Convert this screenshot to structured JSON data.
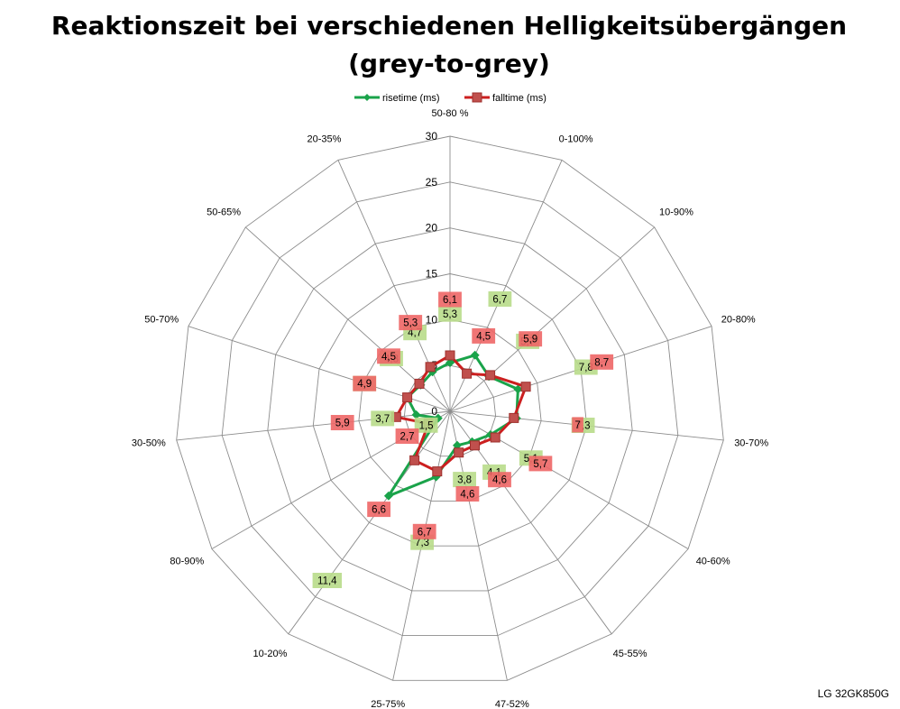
{
  "chart_data": {
    "type": "radar",
    "title": "Reaktionszeit bei verschiedenen Helligkeitsübergängen",
    "subtitle": "(grey-to-grey)",
    "categories": [
      "50-80 %",
      "0-100%",
      "10-90%",
      "20-80%",
      "30-70%",
      "40-60%",
      "45-55%",
      "47-52%",
      "25-75%",
      "10-20%",
      "80-90%",
      "30-50%",
      "50-70%",
      "50-65%",
      "20-35%"
    ],
    "rlim": [
      0,
      30
    ],
    "ticks": [
      0,
      5,
      10,
      15,
      20,
      25,
      30
    ],
    "series": [
      {
        "name": "risetime (ms)",
        "color": "#1aa34a",
        "label_bg": "#b8dc8a",
        "values": [
          5.3,
          6.7,
          5.7,
          7.8,
          7.3,
          5.1,
          4.1,
          3.8,
          7.3,
          11.4,
          1.5,
          3.7,
          4.9,
          4.3,
          4.7
        ]
      },
      {
        "name": "falltime (ms)",
        "color": "#cc1f1f",
        "label_bg": "#ee6666",
        "values": [
          6.1,
          4.5,
          5.9,
          8.7,
          7.0,
          5.7,
          4.6,
          4.6,
          6.7,
          6.6,
          2.7,
          5.9,
          4.9,
          4.5,
          5.3
        ]
      }
    ],
    "grid": true,
    "legend_position": "top"
  },
  "footer": "LG 32GK850G"
}
